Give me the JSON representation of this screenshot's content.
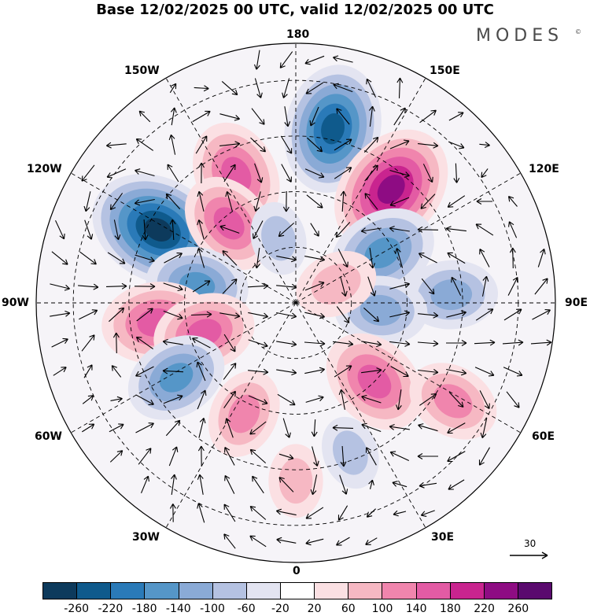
{
  "title": "Base 12/02/2025 00 UTC, valid 12/02/2025 00 UTC",
  "brand": {
    "name": "MODES",
    "mark": "©"
  },
  "longitude_labels": {
    "top": "180",
    "top_right": "150E",
    "right_upper": "120E",
    "right": "90E",
    "right_lower": "60E",
    "bottom_right": "30E",
    "bottom": "0",
    "bottom_left": "30W",
    "left_lower": "60W",
    "left": "90W",
    "left_upper": "120W",
    "top_left": "150W"
  },
  "vector_reference": {
    "label": "30"
  },
  "colorbar": {
    "colors": [
      "#0d3a5c",
      "#0f5a8c",
      "#2a7ab8",
      "#5596c8",
      "#8aaad6",
      "#b5c2e2",
      "#e3e4f1",
      "#ffffff",
      "#fbe0e3",
      "#f6b8c3",
      "#f085ad",
      "#e35ba4",
      "#c9248f",
      "#8e0c83",
      "#5a0a6e"
    ],
    "tick_labels": [
      "-260",
      "-220",
      "-180",
      "-140",
      "-100",
      "-60",
      "-20",
      "20",
      "60",
      "100",
      "140",
      "180",
      "220",
      "260"
    ]
  },
  "anomaly_cells": [
    {
      "lat": 52,
      "lon": -155,
      "value": 170
    },
    {
      "lat": 42,
      "lon": 168,
      "value": -230
    },
    {
      "lat": 50,
      "lon": 140,
      "value": 240
    },
    {
      "lat": 48,
      "lon": -118,
      "value": -260
    },
    {
      "lat": 62,
      "lon": -140,
      "value": 150
    },
    {
      "lat": 63,
      "lon": -100,
      "value": -150
    },
    {
      "lat": 52,
      "lon": -82,
      "value": 170
    },
    {
      "lat": 64,
      "lon": -72,
      "value": 150
    },
    {
      "lat": 52,
      "lon": -58,
      "value": -150
    },
    {
      "lat": 57,
      "lon": -25,
      "value": 110
    },
    {
      "lat": 63,
      "lon": 120,
      "value": -170
    },
    {
      "lat": 48,
      "lon": 93,
      "value": -120
    },
    {
      "lat": 67,
      "lon": 85,
      "value": -120
    },
    {
      "lat": 60,
      "lon": 45,
      "value": 170
    },
    {
      "lat": 40,
      "lon": 58,
      "value": 120
    },
    {
      "lat": 78,
      "lon": 115,
      "value": 90
    },
    {
      "lat": 47,
      "lon": 20,
      "value": -60
    },
    {
      "lat": 42,
      "lon": 0,
      "value": 60
    },
    {
      "lat": 72,
      "lon": -165,
      "value": -60
    }
  ]
}
